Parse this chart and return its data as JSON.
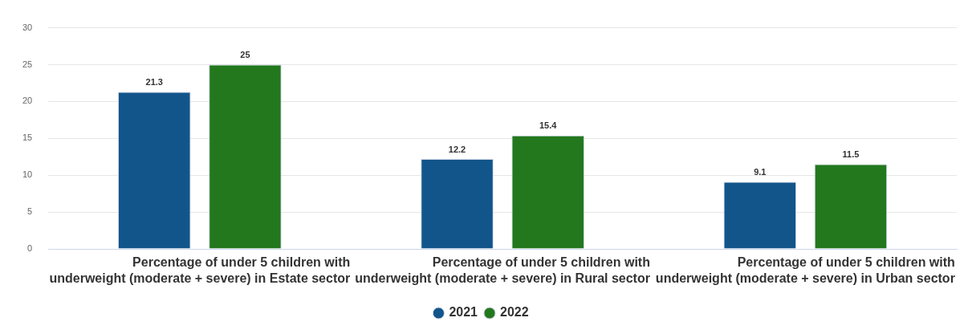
{
  "chart_data": {
    "type": "bar",
    "categories": [
      "Percentage of under 5 children with underweight (moderate + severe) in Estate sector",
      "Percentage of under 5 children with underweight (moderate + severe) in Rural sector",
      "Percentage of under 5 children with underweight (moderate + severe) in Urban sector"
    ],
    "series": [
      {
        "name": "2021",
        "color": "#12558a",
        "values": [
          21.3,
          12.2,
          9.1
        ]
      },
      {
        "name": "2022",
        "color": "#23781d",
        "values": [
          25,
          15.4,
          11.5
        ]
      }
    ],
    "ylim": [
      0,
      30
    ],
    "yticks": [
      0,
      5,
      10,
      15,
      20,
      25,
      30
    ],
    "grid": "y",
    "legend": "bottom",
    "data_labels": true
  }
}
